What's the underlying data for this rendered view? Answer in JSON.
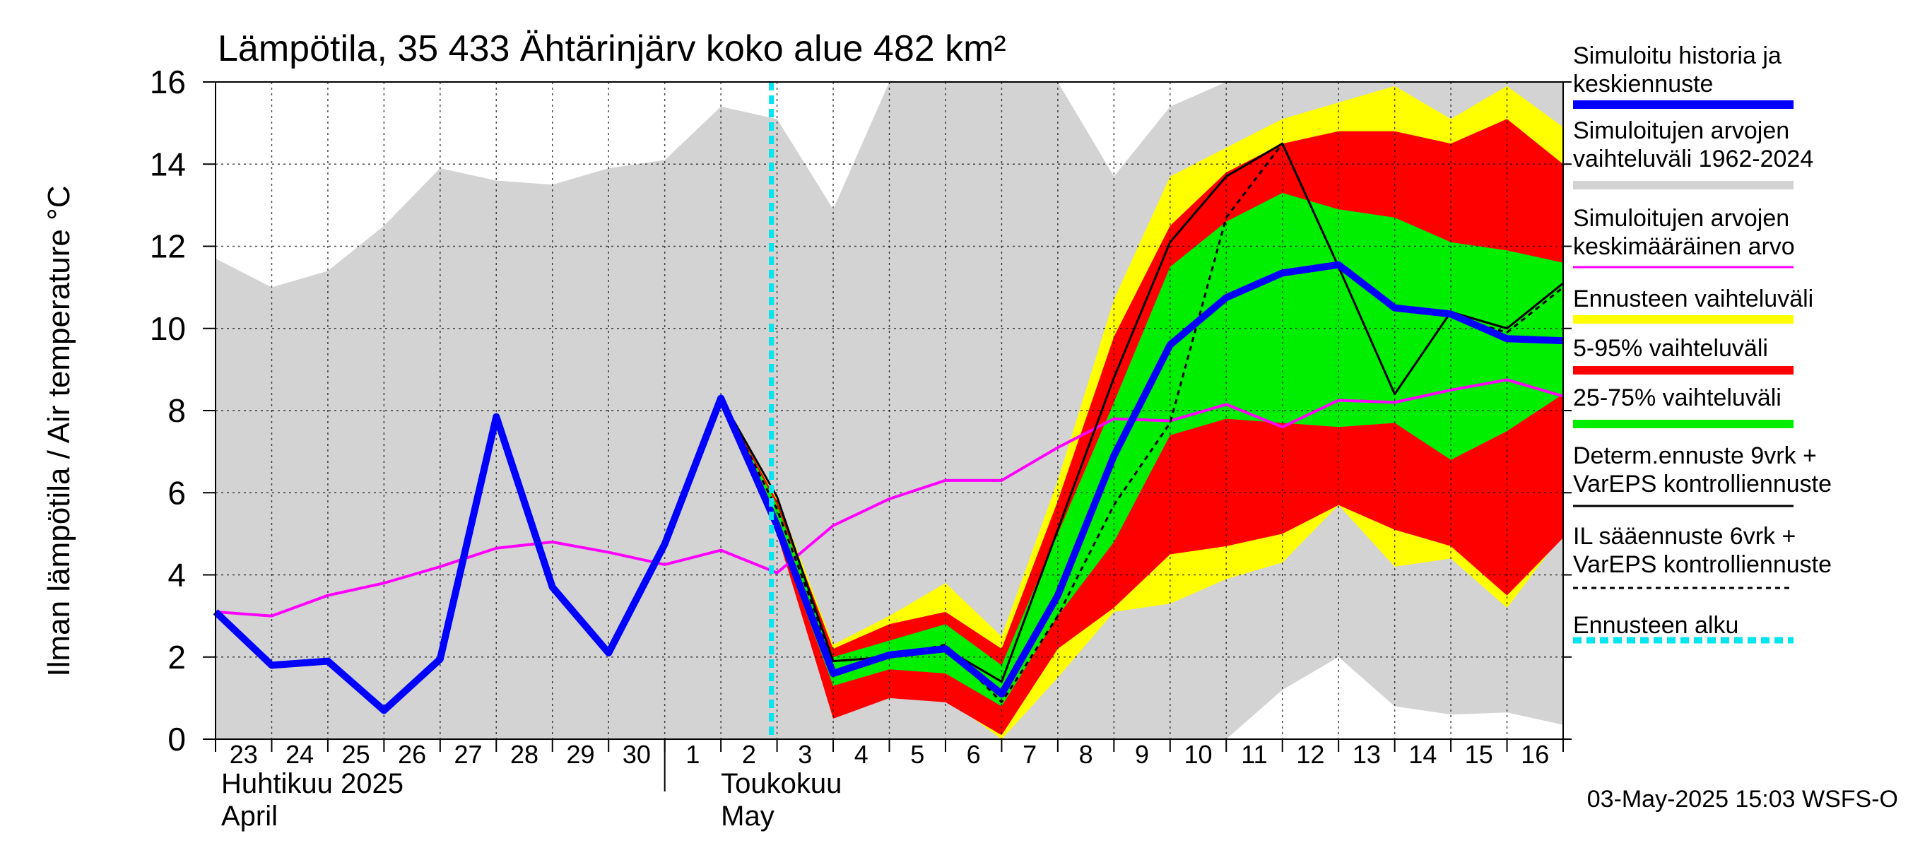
{
  "chart_data": {
    "type": "line",
    "title": "Lämpötila, 35 433 Ähtärinjärv koko alue 482 km²",
    "ylabel": "Ilman lämpötila / Air temperature    °C",
    "ylim": [
      0,
      16
    ],
    "yticks": [
      0,
      2,
      4,
      6,
      8,
      10,
      12,
      14,
      16
    ],
    "grid": true,
    "x_start": "2025-04-23",
    "x_labels": [
      "23",
      "24",
      "25",
      "26",
      "27",
      "28",
      "29",
      "30",
      "1",
      "2",
      "3",
      "4",
      "5",
      "6",
      "7",
      "8",
      "9",
      "10",
      "11",
      "12",
      "13",
      "14",
      "15",
      "16"
    ],
    "month_labels": [
      {
        "fi": "Huhtikuu  2025",
        "en": "April"
      },
      {
        "fi": "Toukokuu",
        "en": "May"
      }
    ],
    "forecast_start": "2025-05-03",
    "timestamp": "03-May-2025 15:03 WSFS-O",
    "legend": [
      {
        "label": "Simuloitu historia ja\nkeskiennuste",
        "color": "#0000ff",
        "style": "thick"
      },
      {
        "label": "Simuloitujen arvojen\nvaihteluväli 1962-2024",
        "color": "#d3d3d3",
        "style": "thick"
      },
      {
        "label": "Simuloitujen arvojen\nkeskimääräinen arvo",
        "color": "#ff00ff",
        "style": "line"
      },
      {
        "label": "Ennusteen vaihteluväli",
        "color": "#ffff00",
        "style": "thick"
      },
      {
        "label": "5-95% vaihteluväli",
        "color": "#ff0000",
        "style": "thick"
      },
      {
        "label": "25-75% vaihteluväli",
        "color": "#00ee00",
        "style": "thick"
      },
      {
        "label": "Determ.ennuste 9vrk +\nVarEPS kontrolliennuste",
        "color": "#000000",
        "style": "line"
      },
      {
        "label": "IL sääennuste 6vrk  +\n  VarEPS kontrolliennuste",
        "color": "#000000",
        "style": "dashed"
      },
      {
        "label": "Ennusteen alku",
        "color": "#00e5ee",
        "style": "dotted"
      }
    ],
    "series": {
      "hist_range": {
        "x": [
          0,
          1,
          2,
          3,
          4,
          5,
          6,
          7,
          8,
          9,
          10,
          11,
          12,
          13,
          14,
          15,
          16,
          17,
          18,
          19,
          20,
          21,
          22,
          23,
          24
        ],
        "lo": [
          0,
          0,
          0,
          0,
          0,
          0,
          0,
          0,
          0,
          0,
          0,
          0,
          0,
          0,
          0,
          0,
          0,
          0,
          0,
          1.2,
          2.0,
          0.8,
          0.6,
          0.65,
          0.35
        ],
        "hi": [
          11.7,
          11.0,
          11.4,
          12.5,
          13.9,
          13.6,
          13.5,
          13.9,
          14.1,
          15.4,
          15.1,
          12.9,
          16,
          16,
          16,
          16,
          13.7,
          15.4,
          16,
          16,
          16,
          16,
          16,
          16,
          16
        ]
      },
      "hist_mean": {
        "x": [
          0,
          1,
          2,
          3,
          4,
          5,
          6,
          7,
          8,
          9,
          10,
          11,
          12,
          13,
          14,
          15,
          16,
          17,
          18,
          19,
          20,
          21,
          22,
          23,
          24
        ],
        "y": [
          3.1,
          3.0,
          3.5,
          3.8,
          4.2,
          4.65,
          4.8,
          4.55,
          4.25,
          4.6,
          4.05,
          5.2,
          5.85,
          6.3,
          6.3,
          7.1,
          7.8,
          7.75,
          8.15,
          7.6,
          8.25,
          8.2,
          8.5,
          8.75,
          8.35
        ]
      },
      "forecast_full": {
        "x": [
          9,
          10,
          11,
          12,
          13,
          14,
          15,
          16,
          17,
          18,
          19,
          20,
          21,
          22,
          23,
          24
        ],
        "lo": [
          8.3,
          5.0,
          0.6,
          1.1,
          1.0,
          0.0,
          1.5,
          3.1,
          3.3,
          3.9,
          4.3,
          5.7,
          4.2,
          4.4,
          3.2,
          5.0
        ],
        "hi": [
          8.3,
          5.9,
          2.3,
          3.0,
          3.8,
          2.5,
          6.3,
          10.7,
          13.7,
          14.4,
          15.1,
          15.5,
          15.9,
          15.1,
          15.9,
          14.9
        ]
      },
      "forecast_5_95": {
        "x": [
          9,
          10,
          11,
          12,
          13,
          14,
          15,
          16,
          17,
          18,
          19,
          20,
          21,
          22,
          23,
          24
        ],
        "lo": [
          8.3,
          5.0,
          0.5,
          1.0,
          0.9,
          0.1,
          2.2,
          3.2,
          4.5,
          4.7,
          5.0,
          5.7,
          5.1,
          4.7,
          3.5,
          4.9
        ],
        "hi": [
          8.3,
          5.8,
          2.2,
          2.8,
          3.1,
          2.2,
          5.8,
          9.8,
          12.5,
          13.8,
          14.5,
          14.8,
          14.8,
          14.5,
          15.1,
          14.0
        ]
      },
      "forecast_25_75": {
        "x": [
          9,
          10,
          11,
          12,
          13,
          14,
          15,
          16,
          17,
          18,
          19,
          20,
          21,
          22,
          23,
          24
        ],
        "lo": [
          8.3,
          5.0,
          1.3,
          1.7,
          1.6,
          0.8,
          3.0,
          4.8,
          7.4,
          7.8,
          7.7,
          7.6,
          7.7,
          6.8,
          7.5,
          8.4
        ],
        "hi": [
          8.3,
          5.7,
          2.0,
          2.4,
          2.8,
          1.8,
          5.0,
          8.2,
          11.5,
          12.6,
          13.3,
          12.9,
          12.7,
          12.1,
          11.9,
          11.6
        ]
      },
      "mean_forecast": {
        "x": [
          0,
          1,
          2,
          3,
          4,
          5,
          6,
          7,
          8,
          9,
          10,
          11,
          12,
          13,
          14,
          15,
          16,
          17,
          18,
          19,
          20,
          21,
          22,
          23,
          24
        ],
        "y": [
          3.1,
          1.8,
          1.9,
          0.7,
          1.95,
          7.85,
          3.7,
          2.1,
          4.75,
          8.3,
          5.2,
          1.6,
          2.05,
          2.2,
          1.1,
          3.5,
          6.9,
          9.6,
          10.75,
          11.35,
          11.55,
          10.5,
          10.35,
          9.75,
          9.7
        ]
      },
      "determ": {
        "x": [
          9,
          10,
          11,
          12,
          13,
          14,
          15,
          16,
          17,
          18,
          19,
          20,
          21,
          22,
          23,
          24
        ],
        "y": [
          8.3,
          5.9,
          1.9,
          2.0,
          2.2,
          1.4,
          5.1,
          8.8,
          12.1,
          13.7,
          14.5,
          11.5,
          8.4,
          10.4,
          10.0,
          11.1
        ]
      },
      "il_forecast": {
        "x": [
          9,
          10,
          11,
          12,
          13,
          14,
          15,
          16,
          17,
          18,
          19,
          20,
          21,
          22,
          23,
          24
        ],
        "y": [
          8.3,
          5.6,
          1.9,
          2.0,
          2.3,
          0.9,
          3.0,
          5.7,
          7.7,
          12.7,
          14.5,
          11.5,
          10.5,
          10.3,
          9.9,
          11.0
        ]
      }
    }
  }
}
